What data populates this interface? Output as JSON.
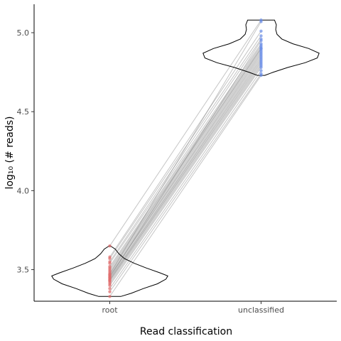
{
  "chart_data": {
    "type": "violin",
    "xlabel": "Read classification",
    "ylabel": "log₁₀ (# reads)",
    "categories": [
      "root",
      "unclassified"
    ],
    "ylim": [
      3.3,
      5.18
    ],
    "yticks": [
      "3.5",
      "4.0",
      "4.5",
      "5.0"
    ],
    "colors": {
      "root": "#e06b6b",
      "unclassified": "#6b8ee8"
    },
    "violins": [
      {
        "category": "root",
        "min": 3.33,
        "max": 3.65,
        "density": [
          [
            3.33,
            0.18
          ],
          [
            3.35,
            0.35
          ],
          [
            3.38,
            0.55
          ],
          [
            3.41,
            0.78
          ],
          [
            3.44,
            0.92
          ],
          [
            3.46,
            0.95
          ],
          [
            3.48,
            0.82
          ],
          [
            3.51,
            0.6
          ],
          [
            3.54,
            0.4
          ],
          [
            3.57,
            0.24
          ],
          [
            3.6,
            0.15
          ],
          [
            3.63,
            0.09
          ],
          [
            3.65,
            0.01
          ]
        ]
      },
      {
        "category": "unclassified",
        "min": 4.73,
        "max": 5.08,
        "density": [
          [
            4.73,
            0.06
          ],
          [
            4.75,
            0.2
          ],
          [
            4.78,
            0.44
          ],
          [
            4.81,
            0.72
          ],
          [
            4.84,
            0.92
          ],
          [
            4.87,
            0.95
          ],
          [
            4.9,
            0.78
          ],
          [
            4.93,
            0.52
          ],
          [
            4.96,
            0.34
          ],
          [
            4.99,
            0.26
          ],
          [
            5.02,
            0.24
          ],
          [
            5.05,
            0.25
          ],
          [
            5.08,
            0.22
          ]
        ]
      }
    ],
    "pairs": [
      [
        3.65,
        5.08
      ],
      [
        3.58,
        5.01
      ],
      [
        3.57,
        4.98
      ],
      [
        3.55,
        4.96
      ],
      [
        3.54,
        4.93
      ],
      [
        3.52,
        4.92
      ],
      [
        3.51,
        4.91
      ],
      [
        3.5,
        4.9
      ],
      [
        3.49,
        4.9
      ],
      [
        3.48,
        4.89
      ],
      [
        3.47,
        4.88
      ],
      [
        3.46,
        4.87
      ],
      [
        3.46,
        4.86
      ],
      [
        3.45,
        4.85
      ],
      [
        3.44,
        4.84
      ],
      [
        3.44,
        4.83
      ],
      [
        3.43,
        4.82
      ],
      [
        3.43,
        4.81
      ],
      [
        3.42,
        4.8
      ],
      [
        3.41,
        4.79
      ],
      [
        3.4,
        4.78
      ],
      [
        3.38,
        4.76
      ],
      [
        3.36,
        4.74
      ],
      [
        3.33,
        4.73
      ],
      [
        3.47,
        5.07
      ],
      [
        3.45,
        4.95
      ]
    ]
  }
}
